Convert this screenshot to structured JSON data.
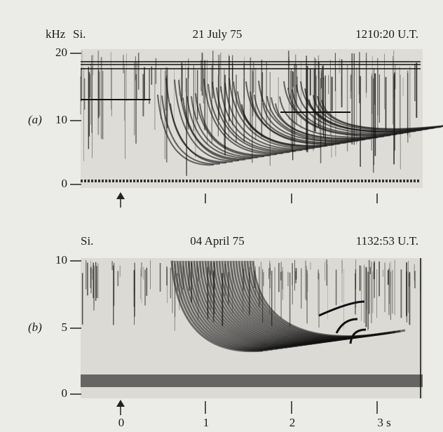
{
  "panel_a": {
    "label": "(a)",
    "unit": "kHz",
    "site": "Si.",
    "date": "21 July 75",
    "time": "1210:20 U.T.",
    "yticks": [
      "20",
      "10",
      "0"
    ]
  },
  "panel_b": {
    "label": "(b)",
    "site": "Si.",
    "date": "04 April 75",
    "time": "1132:53 U.T.",
    "yticks": [
      "10",
      "5",
      "0"
    ],
    "xticks": [
      "0",
      "1",
      "2",
      "3 s"
    ]
  }
}
